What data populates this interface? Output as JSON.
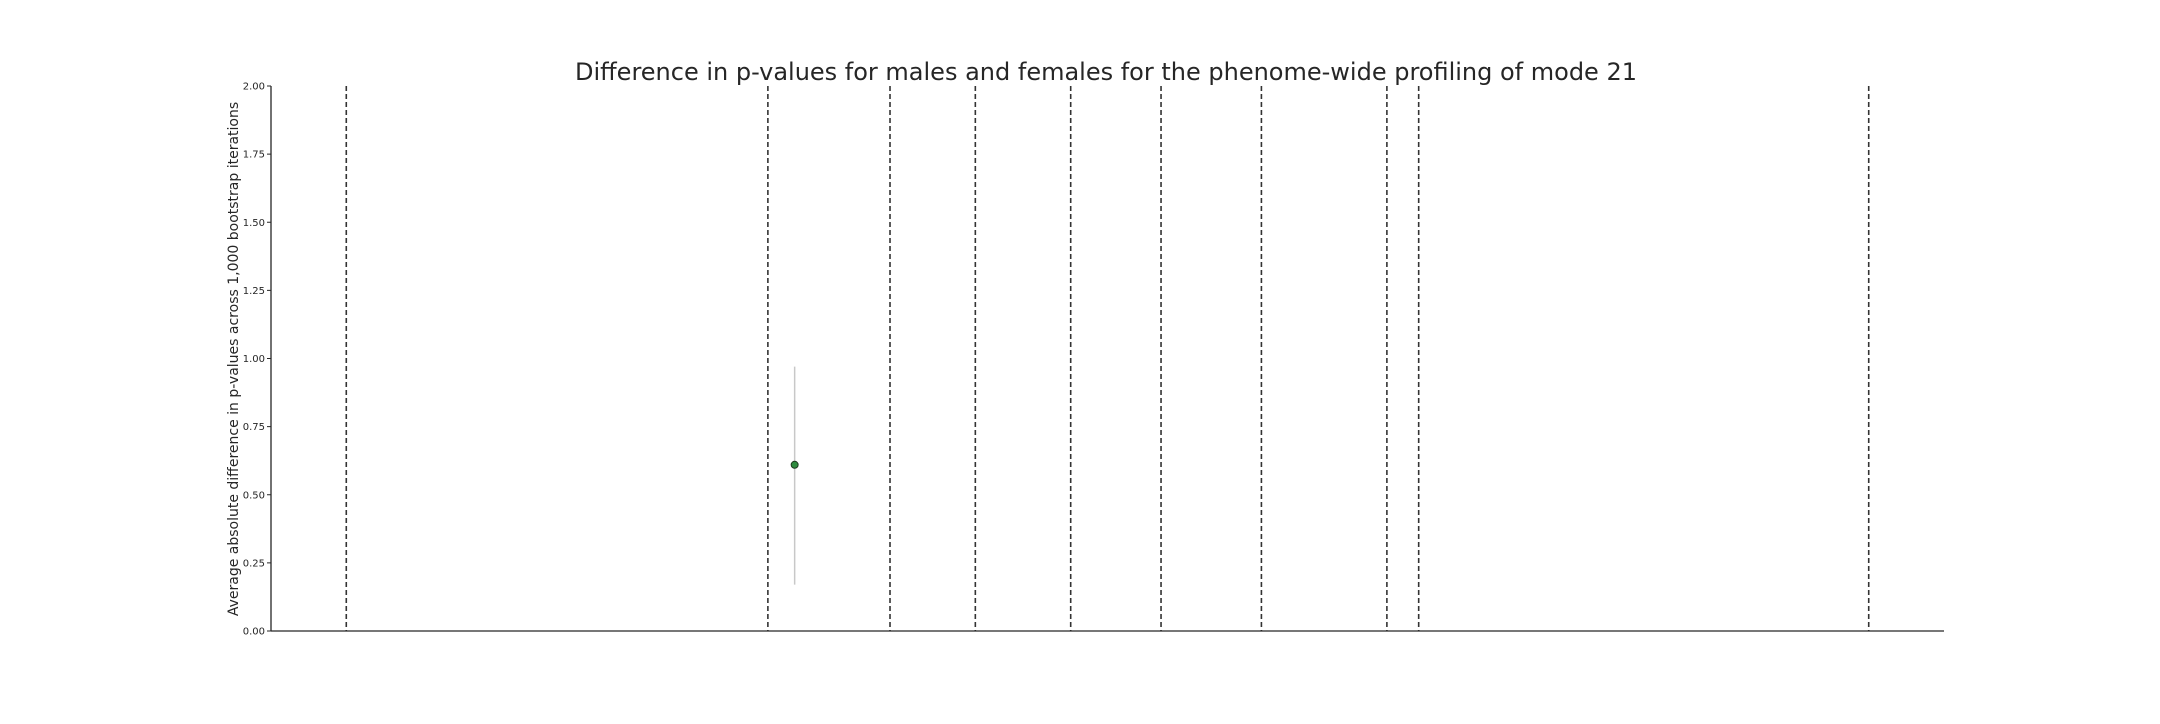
{
  "chart_data": {
    "type": "scatter",
    "title": "Difference in p-values for males and females for the phenome-wide profiling of mode 21",
    "xlabel": "",
    "ylabel": "Average absolute difference in p-values across 1,000 bootstrap iterations",
    "xlim": [
      0,
      100
    ],
    "ylim": [
      0,
      2
    ],
    "yticks": [
      0.0,
      0.25,
      0.5,
      0.75,
      1.0,
      1.25,
      1.5,
      1.75,
      2.0
    ],
    "ytick_labels": [
      "0.00",
      "0.25",
      "0.50",
      "0.75",
      "1.00",
      "1.25",
      "1.50",
      "1.75",
      "2.00"
    ],
    "grid": false,
    "category_dividers_x": [
      4.5,
      29.7,
      37.0,
      42.1,
      47.8,
      53.2,
      59.2,
      66.7,
      68.6,
      95.5
    ],
    "points": [
      {
        "x": 31.3,
        "y": 0.61,
        "err_low": 0.17,
        "err_high": 0.97,
        "color": "#2e8b3e"
      }
    ],
    "colors": {
      "point_edge": "#1f3a1f",
      "errorbar": "#c8c8c8",
      "divider": "#333333",
      "axis": "#262626"
    }
  }
}
